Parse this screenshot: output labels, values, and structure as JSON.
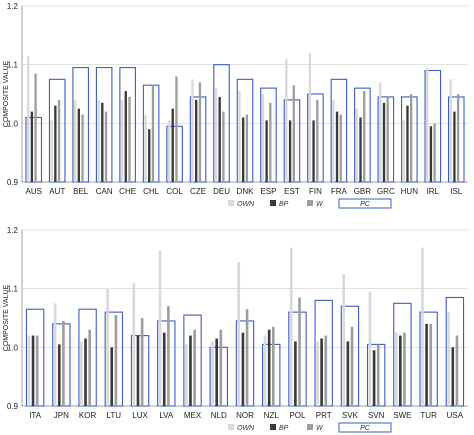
{
  "legend": {
    "own": "OWN",
    "bp": "BP",
    "w": "W",
    "pc": "PC"
  },
  "colors": {
    "own": "#d9d9d9",
    "bp": "#3a3a3a",
    "w": "#9e9e9e",
    "pc": "#3b5cc4",
    "grid": "#d0d0d0",
    "axis": "#888888"
  },
  "chart_data": [
    {
      "type": "bar",
      "ylabel": "COMPOSITE VALUE",
      "ylim": [
        0.9,
        1.2
      ],
      "yticks": [
        "0.9",
        "1.0",
        "1.1",
        "1.2"
      ],
      "grid": true,
      "legend_position": "bottom",
      "categories": [
        "AUS",
        "AUT",
        "BEL",
        "CAN",
        "CHE",
        "CHL",
        "COL",
        "CZE",
        "DEU",
        "DNK",
        "ESP",
        "EST",
        "FIN",
        "FRA",
        "GBR",
        "GRC",
        "HUN",
        "IRL",
        "ISL"
      ],
      "series": [
        {
          "name": "OWN",
          "values": [
            1.115,
            1.005,
            1.04,
            1.04,
            1.04,
            1.015,
            1.005,
            1.075,
            1.06,
            1.055,
            1.05,
            1.11,
            1.12,
            1.04,
            1.025,
            1.07,
            1.005,
            1.095,
            1.075
          ]
        },
        {
          "name": "BP",
          "values": [
            1.02,
            1.03,
            1.025,
            1.035,
            1.055,
            0.99,
            1.025,
            1.04,
            1.045,
            1.01,
            1.005,
            1.005,
            1.005,
            1.02,
            1.01,
            1.035,
            1.03,
            0.995,
            1.02
          ]
        },
        {
          "name": "W",
          "values": [
            1.085,
            1.04,
            1.015,
            1.02,
            1.045,
            1.065,
            1.08,
            1.07,
            1.02,
            1.015,
            1.035,
            1.065,
            1.04,
            1.015,
            1.055,
            1.045,
            1.05,
            1.0,
            1.05
          ]
        },
        {
          "name": "PC",
          "values": [
            1.01,
            1.075,
            1.095,
            1.095,
            1.095,
            1.065,
            0.995,
            1.045,
            1.1,
            1.075,
            1.06,
            1.04,
            1.05,
            1.075,
            1.06,
            1.045,
            1.045,
            1.09,
            1.045
          ]
        }
      ]
    },
    {
      "type": "bar",
      "ylabel": "COMPOSITE VALUE",
      "ylim": [
        0.9,
        1.2
      ],
      "yticks": [
        "0.9",
        "1.0",
        "1.1",
        "1.2"
      ],
      "grid": true,
      "legend_position": "bottom",
      "categories": [
        "ITA",
        "JPN",
        "KOR",
        "LTU",
        "LUX",
        "LVA",
        "MEX",
        "NLD",
        "NOR",
        "NZL",
        "POL",
        "PRT",
        "SVK",
        "SVN",
        "SWE",
        "TUR",
        "USA"
      ],
      "series": [
        {
          "name": "OWN",
          "values": [
            1.02,
            1.075,
            1.01,
            1.1,
            1.11,
            1.165,
            1.005,
            1.01,
            1.145,
            1.02,
            1.17,
            1.01,
            1.125,
            1.095,
            1.025,
            1.17,
            1.06
          ]
        },
        {
          "name": "BP",
          "values": [
            1.02,
            1.005,
            1.015,
            1.0,
            1.02,
            1.025,
            1.02,
            1.015,
            1.025,
            1.03,
            1.01,
            1.015,
            1.01,
            0.995,
            1.02,
            1.04,
            1.0
          ]
        },
        {
          "name": "W",
          "values": [
            1.02,
            1.045,
            1.03,
            1.055,
            1.05,
            1.07,
            1.03,
            1.03,
            1.065,
            1.035,
            1.085,
            1.02,
            1.035,
            1.005,
            1.025,
            1.04,
            1.02
          ]
        },
        {
          "name": "PC",
          "values": [
            1.065,
            1.04,
            1.065,
            1.06,
            1.02,
            1.045,
            1.055,
            1.0,
            1.045,
            1.005,
            1.06,
            1.08,
            1.07,
            1.005,
            1.075,
            1.06,
            1.085
          ]
        }
      ]
    }
  ]
}
